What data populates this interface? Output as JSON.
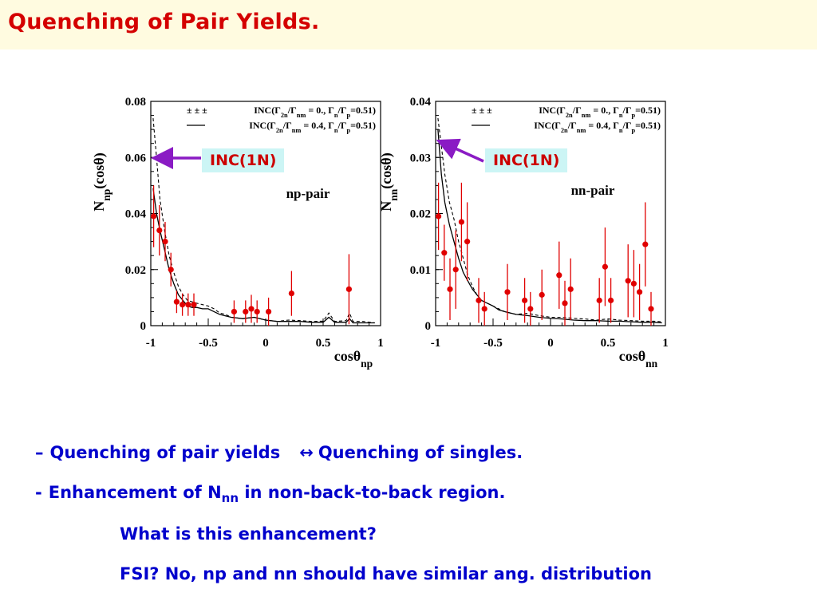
{
  "slide": {
    "title": "Quenching of Pair Yields."
  },
  "legend": {
    "dashed": "INC(Γ2n/Γnm = 0., Γn/Γp=0.51)",
    "solid": "INC(Γ2n/Γnm = 0.4, Γn/Γp=0.51)"
  },
  "annotation": "INC(1N)",
  "bullets": {
    "b1_dash": "–",
    "b1_left": "Quenching of pair yields",
    "b1_arrow": "↔",
    "b1_right": "Quenching of singles.",
    "b2_dash": "-",
    "b2_pre": "Enhancement of N",
    "b2_sub": "nn",
    "b2_post": " in non-back-to-back region.",
    "b3": "What is this enhancement?",
    "b4": "FSI? No, np and nn should have similar ang. distribution"
  },
  "colors": {
    "title": "#d40000",
    "bullets": "#0000cc",
    "points": "#e00000",
    "arrow": "#8a1bc4",
    "box": "#ccf5f5",
    "titlebar": "#fffbe0"
  },
  "chart_data": [
    {
      "type": "scatter",
      "pair_label": "np-pair",
      "xlabel": "cosθnp",
      "ylabel": "Nnp(cosθ)",
      "xlim": [
        -1,
        1
      ],
      "ylim": [
        0,
        0.08
      ],
      "xticks": [
        "-1",
        "-0.5",
        "0",
        "0.5",
        "1"
      ],
      "yticks": [
        "0",
        "0.02",
        "0.04",
        "0.06",
        "0.08"
      ],
      "points": [
        {
          "x": -0.975,
          "y": 0.039,
          "err": 0.011
        },
        {
          "x": -0.925,
          "y": 0.034,
          "err": 0.009
        },
        {
          "x": -0.875,
          "y": 0.03,
          "err": 0.007
        },
        {
          "x": -0.825,
          "y": 0.02,
          "err": 0.006
        },
        {
          "x": -0.775,
          "y": 0.0085,
          "err": 0.004
        },
        {
          "x": -0.725,
          "y": 0.0075,
          "err": 0.004
        },
        {
          "x": -0.675,
          "y": 0.0075,
          "err": 0.004
        },
        {
          "x": -0.625,
          "y": 0.0075,
          "err": 0.004
        },
        {
          "x": -0.275,
          "y": 0.005,
          "err": 0.004
        },
        {
          "x": -0.175,
          "y": 0.005,
          "err": 0.004
        },
        {
          "x": -0.125,
          "y": 0.006,
          "err": 0.005
        },
        {
          "x": -0.075,
          "y": 0.005,
          "err": 0.004
        },
        {
          "x": 0.025,
          "y": 0.005,
          "err": 0.005
        },
        {
          "x": 0.225,
          "y": 0.0115,
          "err": 0.008
        },
        {
          "x": 0.725,
          "y": 0.013,
          "err": 0.0125
        }
      ],
      "series": [
        {
          "name": "INC(Γ2n/Γnm = 0., Γn/Γp=0.51)",
          "style": "dashed",
          "x": [
            -0.98,
            -0.95,
            -0.92,
            -0.88,
            -0.84,
            -0.8,
            -0.76,
            -0.72,
            -0.68,
            -0.64,
            -0.6,
            -0.55,
            -0.5,
            -0.45,
            -0.4,
            -0.35,
            -0.3,
            -0.2,
            -0.1,
            0.0,
            0.1,
            0.2,
            0.3,
            0.4,
            0.5,
            0.55,
            0.6,
            0.7,
            0.73,
            0.76,
            0.85,
            0.95
          ],
          "y": [
            0.074,
            0.06,
            0.045,
            0.034,
            0.025,
            0.019,
            0.014,
            0.011,
            0.009,
            0.0085,
            0.008,
            0.0075,
            0.007,
            0.006,
            0.0045,
            0.004,
            0.003,
            0.0025,
            0.003,
            0.002,
            0.0015,
            0.002,
            0.0018,
            0.0015,
            0.0016,
            0.0045,
            0.0015,
            0.0018,
            0.0045,
            0.0015,
            0.0015,
            0.001
          ]
        },
        {
          "name": "INC(Γ2n/Γnm = 0.4, Γn/Γp=0.51)",
          "style": "solid",
          "x": [
            -0.98,
            -0.95,
            -0.92,
            -0.88,
            -0.84,
            -0.8,
            -0.76,
            -0.72,
            -0.68,
            -0.64,
            -0.6,
            -0.55,
            -0.5,
            -0.45,
            -0.4,
            -0.35,
            -0.3,
            -0.2,
            -0.1,
            0.0,
            0.1,
            0.2,
            0.3,
            0.4,
            0.5,
            0.55,
            0.6,
            0.7,
            0.73,
            0.76,
            0.85,
            0.95
          ],
          "y": [
            0.049,
            0.04,
            0.034,
            0.027,
            0.02,
            0.015,
            0.011,
            0.009,
            0.007,
            0.0065,
            0.0065,
            0.006,
            0.006,
            0.005,
            0.004,
            0.0035,
            0.003,
            0.0025,
            0.003,
            0.002,
            0.0015,
            0.0015,
            0.0015,
            0.0012,
            0.0012,
            0.003,
            0.0012,
            0.0012,
            0.0025,
            0.001,
            0.001,
            0.001
          ]
        }
      ]
    },
    {
      "type": "scatter",
      "pair_label": "nn-pair",
      "xlabel": "cosθnn",
      "ylabel": "Nnn(cosθ)",
      "xlim": [
        -1,
        1
      ],
      "ylim": [
        0,
        0.04
      ],
      "xticks": [
        "-1",
        "-0.5",
        "0",
        "0.5",
        "1"
      ],
      "yticks": [
        "0",
        "0.01",
        "0.02",
        "0.03",
        "0.04"
      ],
      "points": [
        {
          "x": -0.975,
          "y": 0.0195,
          "err": 0.006
        },
        {
          "x": -0.925,
          "y": 0.013,
          "err": 0.005
        },
        {
          "x": -0.875,
          "y": 0.0065,
          "err": 0.0055
        },
        {
          "x": -0.825,
          "y": 0.01,
          "err": 0.007
        },
        {
          "x": -0.775,
          "y": 0.0185,
          "err": 0.007
        },
        {
          "x": -0.725,
          "y": 0.015,
          "err": 0.007
        },
        {
          "x": -0.625,
          "y": 0.0045,
          "err": 0.004
        },
        {
          "x": -0.575,
          "y": 0.003,
          "err": 0.003
        },
        {
          "x": -0.375,
          "y": 0.006,
          "err": 0.005
        },
        {
          "x": -0.225,
          "y": 0.0045,
          "err": 0.004
        },
        {
          "x": -0.175,
          "y": 0.003,
          "err": 0.003
        },
        {
          "x": -0.075,
          "y": 0.0055,
          "err": 0.0045
        },
        {
          "x": 0.075,
          "y": 0.009,
          "err": 0.006
        },
        {
          "x": 0.125,
          "y": 0.004,
          "err": 0.004
        },
        {
          "x": 0.175,
          "y": 0.0065,
          "err": 0.0055
        },
        {
          "x": 0.425,
          "y": 0.0045,
          "err": 0.004
        },
        {
          "x": 0.475,
          "y": 0.0105,
          "err": 0.007
        },
        {
          "x": 0.525,
          "y": 0.0045,
          "err": 0.004
        },
        {
          "x": 0.675,
          "y": 0.008,
          "err": 0.0065
        },
        {
          "x": 0.725,
          "y": 0.0075,
          "err": 0.006
        },
        {
          "x": 0.775,
          "y": 0.006,
          "err": 0.005
        },
        {
          "x": 0.825,
          "y": 0.0145,
          "err": 0.0075
        },
        {
          "x": 0.875,
          "y": 0.003,
          "err": 0.003
        }
      ],
      "series": [
        {
          "name": "INC(Γ2n/Γnm = 0., Γn/Γp=0.51)",
          "style": "dashed",
          "x": [
            -0.98,
            -0.95,
            -0.92,
            -0.88,
            -0.84,
            -0.8,
            -0.76,
            -0.72,
            -0.68,
            -0.64,
            -0.6,
            -0.55,
            -0.5,
            -0.45,
            -0.4,
            -0.3,
            -0.2,
            -0.1,
            0.0,
            0.1,
            0.2,
            0.3,
            0.4,
            0.5,
            0.6,
            0.7,
            0.8,
            0.9,
            0.97
          ],
          "y": [
            0.037,
            0.032,
            0.027,
            0.022,
            0.019,
            0.015,
            0.012,
            0.009,
            0.007,
            0.0055,
            0.0045,
            0.004,
            0.0035,
            0.003,
            0.0025,
            0.002,
            0.0022,
            0.0018,
            0.0015,
            0.0015,
            0.0013,
            0.0012,
            0.001,
            0.0012,
            0.001,
            0.0009,
            0.0008,
            0.0008,
            0.0007
          ]
        },
        {
          "name": "INC(Γ2n/Γnm = 0.4, Γn/Γp=0.51)",
          "style": "solid",
          "x": [
            -0.98,
            -0.95,
            -0.92,
            -0.88,
            -0.84,
            -0.8,
            -0.76,
            -0.72,
            -0.68,
            -0.64,
            -0.6,
            -0.55,
            -0.5,
            -0.45,
            -0.4,
            -0.3,
            -0.2,
            -0.1,
            0.0,
            0.1,
            0.2,
            0.3,
            0.4,
            0.5,
            0.6,
            0.7,
            0.8,
            0.9,
            0.97
          ],
          "y": [
            0.035,
            0.027,
            0.022,
            0.018,
            0.015,
            0.012,
            0.0095,
            0.008,
            0.0065,
            0.0055,
            0.0045,
            0.004,
            0.0035,
            0.0028,
            0.0025,
            0.002,
            0.0018,
            0.0015,
            0.0013,
            0.0012,
            0.001,
            0.0009,
            0.0009,
            0.0008,
            0.0008,
            0.0007,
            0.0006,
            0.0006,
            0.0005
          ]
        }
      ]
    }
  ]
}
